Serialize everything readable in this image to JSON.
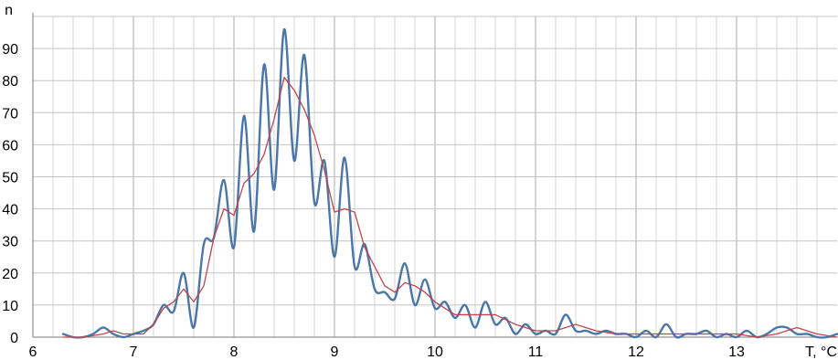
{
  "chart_data": {
    "type": "line",
    "title": "",
    "xlabel": "T, °C",
    "ylabel": "n",
    "xlim": [
      6,
      14
    ],
    "ylim": [
      0,
      100
    ],
    "x_ticks": [
      6,
      7,
      8,
      9,
      10,
      11,
      12,
      13
    ],
    "y_ticks": [
      0,
      10,
      20,
      30,
      40,
      50,
      60,
      70,
      80,
      90
    ],
    "grid": true,
    "minor_x_step": 0.2,
    "legend": "none",
    "series": [
      {
        "color": "#4a76a8",
        "x": [
          6.3,
          6.4,
          6.5,
          6.6,
          6.7,
          6.8,
          6.9,
          7.0,
          7.1,
          7.2,
          7.3,
          7.4,
          7.5,
          7.6,
          7.7,
          7.8,
          7.9,
          8.0,
          8.1,
          8.2,
          8.3,
          8.4,
          8.5,
          8.6,
          8.7,
          8.8,
          8.9,
          9.0,
          9.1,
          9.2,
          9.3,
          9.4,
          9.5,
          9.6,
          9.7,
          9.8,
          9.9,
          10.0,
          10.1,
          10.2,
          10.3,
          10.4,
          10.5,
          10.6,
          10.7,
          10.8,
          10.9,
          11.0,
          11.1,
          11.2,
          11.3,
          11.4,
          11.5,
          11.6,
          11.7,
          11.8,
          11.9,
          12.0,
          12.1,
          12.2,
          12.3,
          12.4,
          12.5,
          12.6,
          12.7,
          12.8,
          12.9,
          13.0,
          13.1,
          13.2,
          13.3,
          13.4,
          13.5,
          13.6,
          13.7,
          13.8,
          13.9,
          14.0
        ],
        "y": [
          1,
          0,
          0,
          1,
          3,
          1,
          0,
          1,
          2,
          4,
          10,
          8,
          20,
          3,
          29,
          31,
          49,
          28,
          69,
          33,
          85,
          46,
          96,
          55,
          88,
          42,
          55,
          25,
          56,
          22,
          29,
          15,
          14,
          12,
          23,
          10,
          18,
          9,
          11,
          6,
          10,
          3,
          11,
          4,
          6,
          1,
          4,
          1,
          2,
          1,
          7,
          2,
          2,
          1,
          2,
          1,
          1,
          0,
          2,
          0,
          4,
          0,
          1,
          1,
          2,
          0,
          1,
          0,
          2,
          0,
          1,
          3,
          3,
          1,
          1,
          0,
          0,
          1
        ]
      },
      {
        "color": "#c0464d",
        "x": [
          6.3,
          6.5,
          6.7,
          6.8,
          6.9,
          7.0,
          7.1,
          7.2,
          7.3,
          7.4,
          7.5,
          7.6,
          7.7,
          7.8,
          7.9,
          8.0,
          8.1,
          8.2,
          8.3,
          8.4,
          8.5,
          8.6,
          8.7,
          8.8,
          8.9,
          9.0,
          9.1,
          9.2,
          9.3,
          9.4,
          9.5,
          9.6,
          9.7,
          9.8,
          9.9,
          10.0,
          10.2,
          10.4,
          10.6,
          10.8,
          11.0,
          11.2,
          11.4,
          11.6,
          11.8,
          12.0,
          12.2,
          12.4,
          12.6,
          12.8,
          13.0,
          13.2,
          13.4,
          13.6,
          13.8,
          14.0
        ],
        "y": [
          0,
          0,
          1,
          2,
          1,
          1,
          1,
          4,
          9,
          11,
          15,
          11,
          16,
          31,
          40,
          38,
          48,
          51,
          57,
          68,
          81,
          77,
          71,
          63,
          52,
          39,
          40,
          39,
          28,
          22,
          16,
          14,
          17,
          16,
          14,
          11,
          7,
          7,
          7,
          4,
          2,
          2,
          4,
          2,
          1,
          1,
          1,
          1,
          1,
          1,
          1,
          0,
          1,
          3,
          1,
          0
        ]
      }
    ]
  }
}
